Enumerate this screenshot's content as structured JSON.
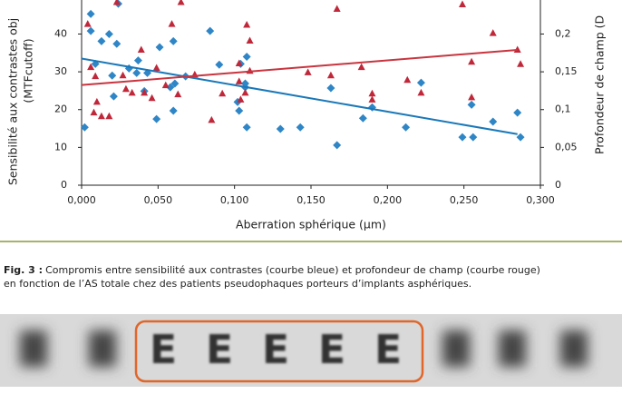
{
  "chart_data": {
    "type": "scatter",
    "xlabel": "Aberration sphérique  (µm)",
    "ylabel": [
      "Sensibilité aux contrastes obj",
      "(MTFcutoff)"
    ],
    "y2label": "Profondeur de champ (D",
    "xlim": [
      0,
      0.3
    ],
    "ylim": [
      0,
      49
    ],
    "y2lim": [
      0,
      0.245
    ],
    "xticks": [
      {
        "value": 0,
        "label": "0,000"
      },
      {
        "value": 0.05,
        "label": "0,050"
      },
      {
        "value": 0.1,
        "label": "0,100"
      },
      {
        "value": 0.15,
        "label": "0,150"
      },
      {
        "value": 0.2,
        "label": "0,200"
      },
      {
        "value": 0.25,
        "label": "0,250"
      },
      {
        "value": 0.3,
        "label": "0,300"
      }
    ],
    "yticks": [
      0,
      10,
      20,
      30,
      40
    ],
    "y2ticks": [
      0,
      {
        "value": 0.05,
        "label": "0,05"
      },
      {
        "value": 0.1,
        "label": "0,1"
      },
      {
        "value": 0.15,
        "label": "0,15"
      },
      {
        "value": 0.2,
        "label": "0,2"
      }
    ],
    "series": [
      {
        "color": "#2f86c6",
        "marker": "diamond",
        "x": [
          0.002,
          0.006,
          0.006,
          0.013,
          0.018,
          0.009,
          0.023,
          0.024,
          0.02,
          0.021,
          0.031,
          0.037,
          0.036,
          0.043,
          0.049,
          0.041,
          0.051,
          0.058,
          0.06,
          0.06,
          0.068,
          0.061,
          0.084,
          0.09,
          0.102,
          0.104,
          0.103,
          0.107,
          0.108,
          0.107,
          0.108,
          0.13,
          0.143,
          0.167,
          0.163,
          0.184,
          0.19,
          0.212,
          0.222,
          0.249,
          0.256,
          0.255,
          0.269,
          0.285,
          0.287
        ],
        "values": [
          15.3,
          45.3,
          40.8,
          38.1,
          40,
          32.1,
          37.4,
          48,
          29,
          23.5,
          30.9,
          33,
          29.7,
          29.7,
          17.5,
          24.9,
          36.5,
          25.9,
          38.1,
          19.7,
          28.8,
          26.9,
          40.8,
          31.9,
          22,
          32.1,
          19.7,
          26.9,
          34,
          25.9,
          15.3,
          14.9,
          15.3,
          10.6,
          25.7,
          17.7,
          20.6,
          15.3,
          27.1,
          12.7,
          12.7,
          21.3,
          16.8,
          19.2,
          12.7
        ]
      },
      {
        "color": "#c0283a",
        "marker": "triangle",
        "axis": "y2",
        "x": [
          0.004,
          0.006,
          0.008,
          0.01,
          0.013,
          0.018,
          0.009,
          0.023,
          0.027,
          0.029,
          0.033,
          0.039,
          0.041,
          0.046,
          0.049,
          0.055,
          0.059,
          0.063,
          0.065,
          0.074,
          0.085,
          0.092,
          0.103,
          0.103,
          0.104,
          0.107,
          0.108,
          0.11,
          0.11,
          0.148,
          0.163,
          0.167,
          0.183,
          0.19,
          0.19,
          0.213,
          0.222,
          0.249,
          0.255,
          0.255,
          0.269,
          0.285,
          0.287
        ],
        "values": [
          0.213,
          0.156,
          0.096,
          0.11,
          0.091,
          0.091,
          0.144,
          0.242,
          0.145,
          0.127,
          0.122,
          0.179,
          0.122,
          0.115,
          0.155,
          0.132,
          0.213,
          0.12,
          0.242,
          0.146,
          0.086,
          0.121,
          0.161,
          0.137,
          0.113,
          0.122,
          0.212,
          0.151,
          0.191,
          0.149,
          0.145,
          0.233,
          0.156,
          0.121,
          0.113,
          0.139,
          0.122,
          0.239,
          0.163,
          0.116,
          0.201,
          0.179,
          0.16
        ]
      }
    ],
    "trendlines": [
      {
        "color": "#1a78b8",
        "x": [
          0,
          0.285
        ],
        "values": [
          33.5,
          13.5
        ]
      },
      {
        "color": "#c8353f",
        "axis": "y2",
        "x": [
          0,
          0.285
        ],
        "values": [
          0.1325,
          0.179
        ]
      }
    ]
  },
  "caption": {
    "label": "Fig. 3 :",
    "lines": [
      "Compromis entre sensibilité aux contrastes (courbe bleue) et profondeur de champ (courbe rouge)",
      "en fonction de l’AS totale chez des patients pseudophaques porteurs d’implants asphériques."
    ]
  },
  "letters": [
    "E",
    "E",
    "E",
    "E",
    "E"
  ]
}
